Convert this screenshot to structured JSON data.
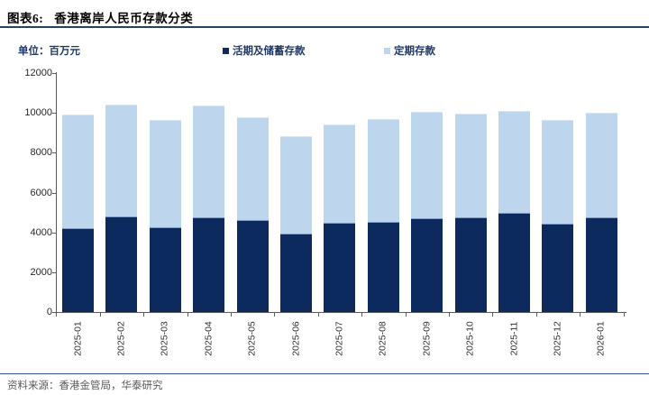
{
  "header": {
    "figure_label": "图表6:",
    "title": "香港离岸人民币存款分类"
  },
  "meta": {
    "unit": "单位：百万元"
  },
  "legend": [
    {
      "label": "活期及储蓄存款",
      "color": "#0D2A5F"
    },
    {
      "label": "定期存款",
      "color": "#BDD6EE"
    }
  ],
  "chart_data": {
    "type": "bar",
    "stacked": true,
    "title": "香港离岸人民币存款分类",
    "unit": "百万元",
    "categories": [
      "2025-01",
      "2025-02",
      "2025-03",
      "2025-04",
      "2025-05",
      "2025-06",
      "2025-07",
      "2025-08",
      "2025-09",
      "2025-10",
      "2025-11",
      "2025-12",
      "2026-01"
    ],
    "series": [
      {
        "name": "活期及储蓄存款",
        "color": "#0D2A5F",
        "values": [
          4200,
          4800,
          4250,
          4750,
          4600,
          3950,
          4500,
          4550,
          4700,
          4750,
          5000,
          4450,
          4750
        ]
      },
      {
        "name": "定期存款",
        "color": "#BDD6EE",
        "values": [
          5700,
          5600,
          5400,
          5600,
          5200,
          4900,
          4900,
          5150,
          5350,
          5200,
          5100,
          5200,
          5250
        ]
      }
    ],
    "totals": [
      9900,
      10400,
      9650,
      10350,
      9800,
      8850,
      9400,
      9700,
      10050,
      9950,
      10100,
      9650,
      10000
    ],
    "xlabel": "",
    "ylabel": "",
    "ylim": [
      0,
      12000
    ],
    "yticks": [
      0,
      2000,
      4000,
      6000,
      8000,
      10000,
      12000
    ],
    "grid": false,
    "legend_position": "top"
  },
  "footer": {
    "source": "资料来源：香港金管局，华泰研究"
  }
}
